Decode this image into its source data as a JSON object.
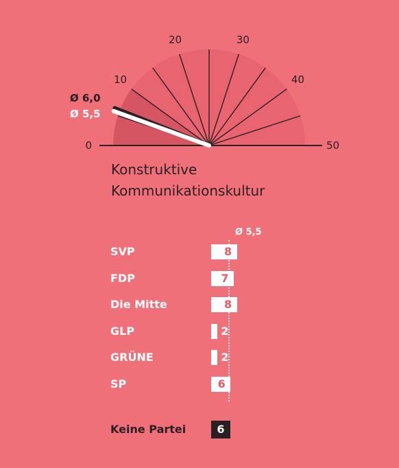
{
  "chart_data": [
    {
      "type": "gauge",
      "title": "Konstruktive Kommunikationskultur",
      "title_lines": [
        "Konstruktive",
        "Kommunikationskultur"
      ],
      "range": [
        0,
        50
      ],
      "tick_labels": [
        {
          "value": 0,
          "label": "0"
        },
        {
          "value": 10,
          "label": "10"
        },
        {
          "value": 20,
          "label": "20"
        },
        {
          "value": 30,
          "label": "30"
        },
        {
          "value": 40,
          "label": "40"
        },
        {
          "value": 50,
          "label": "50"
        }
      ],
      "needles": [
        {
          "label": "Ø 6,0",
          "value": 6.0,
          "color": "#2a1f22"
        },
        {
          "label": "Ø 5,5",
          "value": 5.5,
          "color": "#ffffff"
        }
      ],
      "colors": {
        "background": "#f0707a",
        "sector_light": "#e86470",
        "sector_dark": "#d65562",
        "ink": "#2a1f22"
      }
    },
    {
      "type": "bar",
      "orientation": "horizontal",
      "average": {
        "label": "Ø 5,5",
        "value": 5.5
      },
      "categories": [
        "SVP",
        "FDP",
        "Die Mitte",
        "GLP",
        "GRÜNE",
        "SP"
      ],
      "values": [
        8,
        7,
        8,
        2,
        2,
        6
      ],
      "value_labels": [
        "8",
        "7",
        "8",
        "2",
        "2",
        "6"
      ],
      "extra": {
        "category": "Keine Partei",
        "value": 6,
        "value_label": "6",
        "color": "#2a1f22"
      }
    }
  ]
}
